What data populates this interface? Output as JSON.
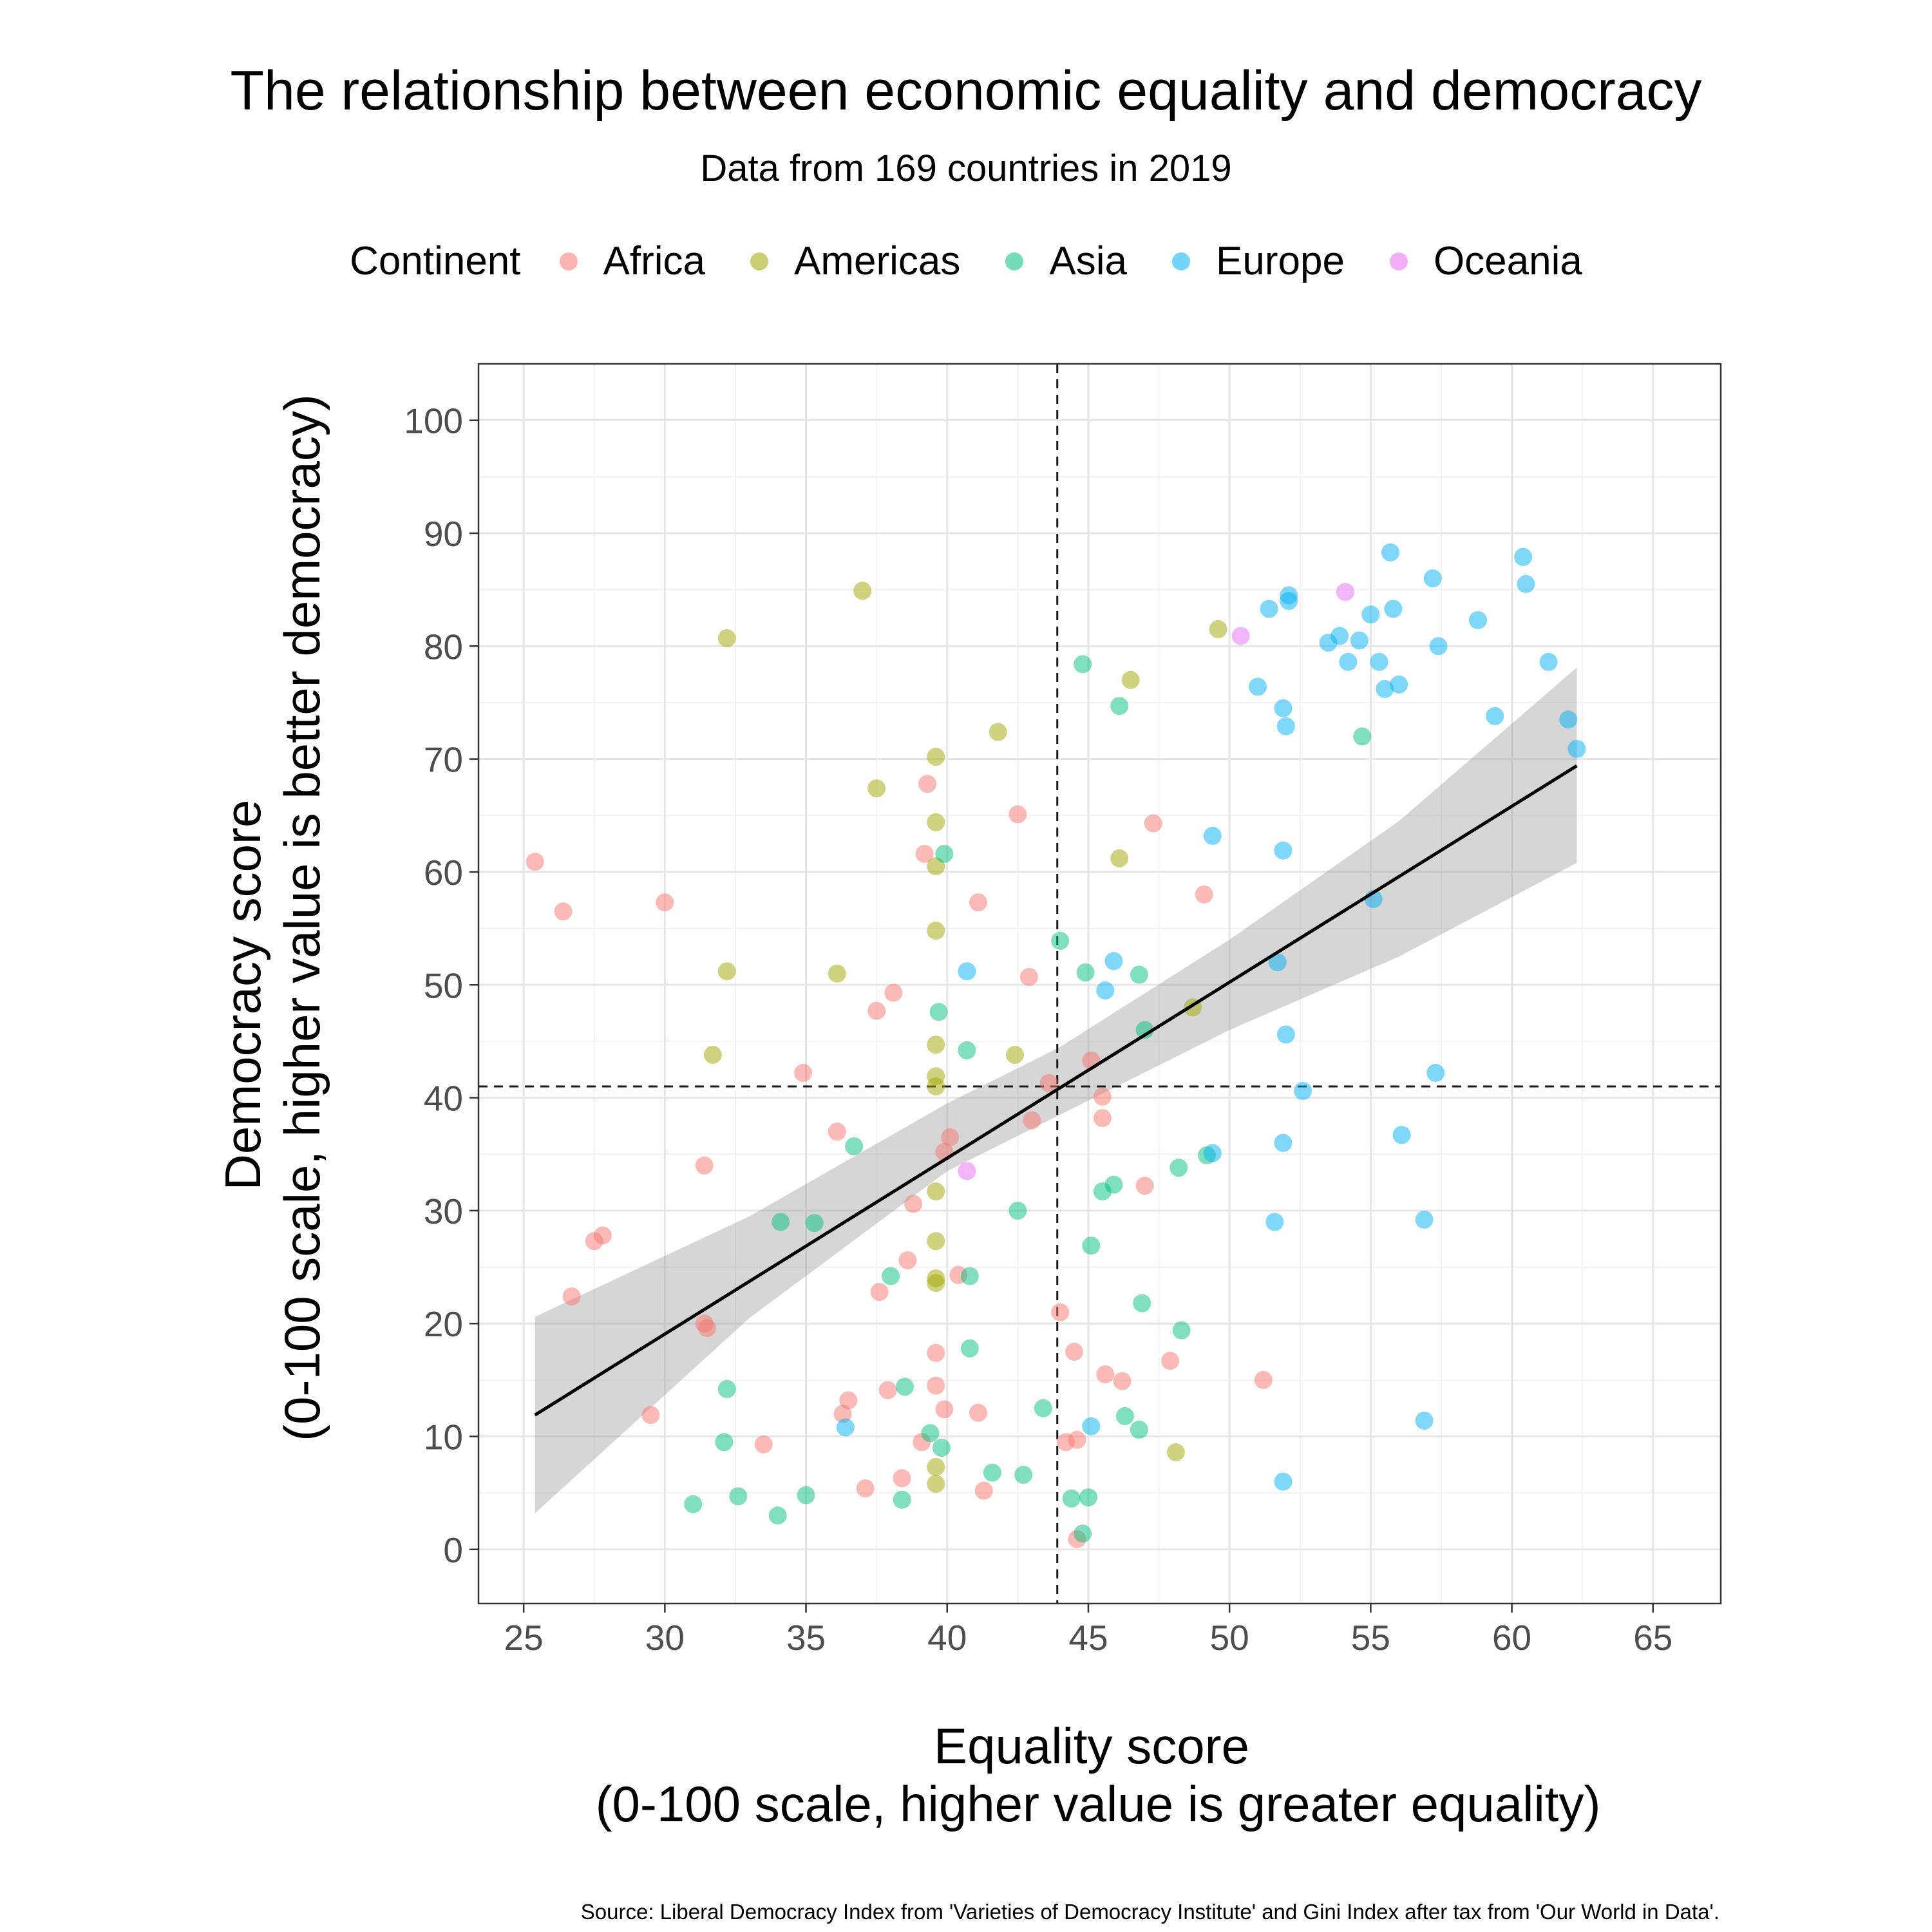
{
  "title": "The relationship between economic equality and democracy",
  "subtitle": "Data from 169 countries in 2019",
  "caption": "Source: Liberal Democracy Index from 'Varieties of Democracy Institute' and Gini Index after tax from 'Our World in Data'.",
  "legend": {
    "title": "Continent",
    "items": [
      {
        "label": "Africa",
        "color": "#F8766D"
      },
      {
        "label": "Americas",
        "color": "#A3A500"
      },
      {
        "label": "Asia",
        "color": "#00BF7D"
      },
      {
        "label": "Europe",
        "color": "#00B0F6"
      },
      {
        "label": "Oceania",
        "color": "#E76BF3"
      }
    ]
  },
  "chart_data": {
    "type": "scatter",
    "title": "The relationship between economic equality and democracy",
    "subtitle": "Data from 169 countries in 2019",
    "xlabel_line1": "Equality score",
    "xlabel_line2": "(0-100 scale, higher value is greater equality)",
    "ylabel_line1": "Democracy score",
    "ylabel_line2": "(0-100 scale, higher value is better democracy)",
    "xlim": [
      23.4,
      67.4
    ],
    "ylim": [
      -4.8,
      105
    ],
    "xticks": [
      25,
      30,
      35,
      40,
      45,
      50,
      55,
      60,
      65
    ],
    "yticks": [
      0,
      10,
      20,
      30,
      40,
      50,
      60,
      70,
      80,
      90,
      100
    ],
    "grid": true,
    "legend_position": "top",
    "reference_lines": {
      "vertical_x": 43.9,
      "horizontal_y": 41
    },
    "trend_line": {
      "x1": 25.4,
      "y1": 11.9,
      "x2": 62.3,
      "y2": 69.4
    },
    "confidence_band": [
      [
        25.4,
        3.2,
        20.6
      ],
      [
        33,
        20.5,
        29.5
      ],
      [
        40,
        33.5,
        39.5
      ],
      [
        44,
        38.5,
        44.5
      ],
      [
        50,
        46,
        54
      ],
      [
        56,
        52.5,
        64.5
      ],
      [
        62.3,
        60.8,
        78.1
      ]
    ],
    "series": [
      {
        "name": "Africa",
        "color": "#F8766D",
        "points": [
          [
            25.4,
            60.9
          ],
          [
            26.4,
            56.5
          ],
          [
            30,
            57.3
          ],
          [
            26.7,
            22.4
          ],
          [
            27.5,
            27.3
          ],
          [
            27.8,
            27.8
          ],
          [
            29.5,
            11.9
          ],
          [
            31.4,
            20
          ],
          [
            31.5,
            19.6
          ],
          [
            31.4,
            34
          ],
          [
            33.5,
            9.3
          ],
          [
            34.9,
            42.2
          ],
          [
            36.1,
            37
          ],
          [
            36.3,
            12
          ],
          [
            36.5,
            13.2
          ],
          [
            37.1,
            5.4
          ],
          [
            37.5,
            47.7
          ],
          [
            37.6,
            22.8
          ],
          [
            37.9,
            14.1
          ],
          [
            38.1,
            49.3
          ],
          [
            38.4,
            6.3
          ],
          [
            38.6,
            25.6
          ],
          [
            38.8,
            30.6
          ],
          [
            39.1,
            9.5
          ],
          [
            39.2,
            61.6
          ],
          [
            39.3,
            67.8
          ],
          [
            39.6,
            17.4
          ],
          [
            39.6,
            14.5
          ],
          [
            39.9,
            12.4
          ],
          [
            39.9,
            35.2
          ],
          [
            40.1,
            36.5
          ],
          [
            40.4,
            24.3
          ],
          [
            41.1,
            57.3
          ],
          [
            41.1,
            12.1
          ],
          [
            41.3,
            5.2
          ],
          [
            42.5,
            65.1
          ],
          [
            42.9,
            50.7
          ],
          [
            43,
            38
          ],
          [
            43.6,
            41.3
          ],
          [
            44,
            21
          ],
          [
            44.2,
            9.5
          ],
          [
            44.5,
            17.5
          ],
          [
            44.6,
            9.7
          ],
          [
            44.6,
            0.9
          ],
          [
            45.1,
            43.3
          ],
          [
            45.5,
            40.1
          ],
          [
            45.5,
            38.2
          ],
          [
            45.6,
            15.5
          ],
          [
            46.2,
            14.9
          ],
          [
            47,
            32.2
          ],
          [
            47.3,
            64.3
          ],
          [
            47.9,
            16.7
          ],
          [
            49.1,
            58
          ],
          [
            51.2,
            15
          ]
        ]
      },
      {
        "name": "Americas",
        "color": "#A3A500",
        "points": [
          [
            32.2,
            80.7
          ],
          [
            37,
            84.9
          ],
          [
            32.2,
            51.2
          ],
          [
            31.7,
            43.8
          ],
          [
            36.1,
            51
          ],
          [
            37.5,
            67.4
          ],
          [
            39.6,
            70.2
          ],
          [
            39.6,
            64.4
          ],
          [
            39.6,
            60.5
          ],
          [
            39.6,
            54.8
          ],
          [
            39.6,
            44.7
          ],
          [
            39.6,
            41.9
          ],
          [
            39.6,
            41
          ],
          [
            39.6,
            31.7
          ],
          [
            39.6,
            27.3
          ],
          [
            39.6,
            24
          ],
          [
            39.6,
            23.6
          ],
          [
            39.6,
            7.3
          ],
          [
            39.6,
            5.8
          ],
          [
            41.8,
            72.4
          ],
          [
            42.4,
            43.8
          ],
          [
            46.1,
            61.2
          ],
          [
            46.5,
            77
          ],
          [
            48.1,
            8.6
          ],
          [
            48.7,
            48
          ],
          [
            49.6,
            81.5
          ]
        ]
      },
      {
        "name": "Asia",
        "color": "#00BF7D",
        "points": [
          [
            31,
            4
          ],
          [
            32.1,
            9.5
          ],
          [
            32.2,
            14.2
          ],
          [
            32.6,
            4.7
          ],
          [
            34.1,
            29
          ],
          [
            34,
            3
          ],
          [
            35,
            4.8
          ],
          [
            35.3,
            28.9
          ],
          [
            36.7,
            35.7
          ],
          [
            38,
            24.2
          ],
          [
            38.4,
            4.4
          ],
          [
            38.5,
            14.4
          ],
          [
            39.4,
            10.3
          ],
          [
            39.8,
            9
          ],
          [
            39.7,
            47.6
          ],
          [
            39.9,
            61.6
          ],
          [
            40.7,
            44.2
          ],
          [
            40.8,
            24.2
          ],
          [
            40.8,
            17.8
          ],
          [
            41.6,
            6.8
          ],
          [
            42.5,
            30
          ],
          [
            42.7,
            6.6
          ],
          [
            43.4,
            12.5
          ],
          [
            44,
            53.9
          ],
          [
            44.4,
            4.5
          ],
          [
            44.8,
            78.4
          ],
          [
            44.8,
            1.4
          ],
          [
            44.9,
            51.1
          ],
          [
            45.1,
            26.9
          ],
          [
            45,
            4.6
          ],
          [
            45.5,
            31.7
          ],
          [
            45.9,
            32.3
          ],
          [
            46.1,
            74.7
          ],
          [
            46.3,
            11.8
          ],
          [
            46.8,
            50.9
          ],
          [
            46.9,
            21.8
          ],
          [
            46.8,
            10.6
          ],
          [
            47,
            46
          ],
          [
            48.2,
            33.8
          ],
          [
            48.3,
            19.4
          ],
          [
            49.2,
            34.9
          ],
          [
            54.7,
            72
          ]
        ]
      },
      {
        "name": "Europe",
        "color": "#00B0F6",
        "points": [
          [
            36.4,
            10.8
          ],
          [
            40.7,
            51.2
          ],
          [
            45.1,
            10.9
          ],
          [
            45.6,
            49.5
          ],
          [
            45.9,
            52.1
          ],
          [
            49.4,
            63.2
          ],
          [
            49.4,
            35.1
          ],
          [
            51,
            76.4
          ],
          [
            51.4,
            83.3
          ],
          [
            51.6,
            29
          ],
          [
            51.7,
            52
          ],
          [
            51.9,
            36
          ],
          [
            51.9,
            74.5
          ],
          [
            51.9,
            6
          ],
          [
            51.9,
            61.9
          ],
          [
            52,
            72.9
          ],
          [
            52,
            45.6
          ],
          [
            52.1,
            84.5
          ],
          [
            52.1,
            84
          ],
          [
            52.6,
            40.6
          ],
          [
            53.5,
            80.3
          ],
          [
            53.9,
            80.9
          ],
          [
            54.2,
            78.6
          ],
          [
            54.6,
            80.5
          ],
          [
            55,
            82.8
          ],
          [
            55.1,
            57.6
          ],
          [
            55.3,
            78.6
          ],
          [
            55.5,
            76.2
          ],
          [
            55.7,
            88.3
          ],
          [
            55.8,
            83.3
          ],
          [
            56,
            76.6
          ],
          [
            56.1,
            36.7
          ],
          [
            56.9,
            29.2
          ],
          [
            56.9,
            11.4
          ],
          [
            57.2,
            86
          ],
          [
            57.3,
            42.2
          ],
          [
            57.4,
            80
          ],
          [
            58.8,
            82.3
          ],
          [
            59.4,
            73.8
          ],
          [
            60.4,
            87.9
          ],
          [
            60.5,
            85.5
          ],
          [
            61.3,
            78.6
          ],
          [
            62,
            73.5
          ],
          [
            62.3,
            70.9
          ]
        ]
      },
      {
        "name": "Oceania",
        "color": "#E76BF3",
        "points": [
          [
            54.1,
            84.8
          ],
          [
            50.4,
            80.9
          ],
          [
            40.7,
            33.5
          ]
        ]
      }
    ]
  }
}
